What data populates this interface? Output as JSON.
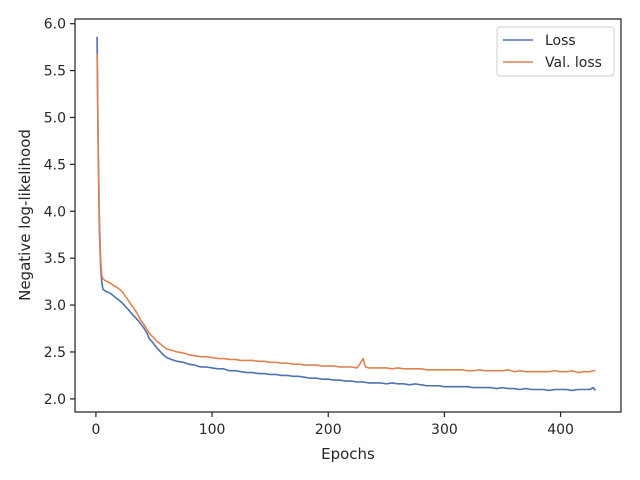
{
  "chart_data": {
    "type": "line",
    "title": "",
    "xlabel": "Epochs",
    "ylabel": "Negative log-likelihood",
    "xlim": [
      -18,
      452
    ],
    "ylim": [
      1.86,
      6.05
    ],
    "x_ticks": [
      0,
      100,
      200,
      300,
      400
    ],
    "x_tick_labels": [
      "0",
      "100",
      "200",
      "300",
      "400"
    ],
    "y_ticks": [
      2.0,
      2.5,
      3.0,
      3.5,
      4.0,
      4.5,
      5.0,
      5.5,
      6.0
    ],
    "y_tick_labels": [
      "2.0",
      "2.5",
      "3.0",
      "3.5",
      "4.0",
      "4.5",
      "5.0",
      "5.5",
      "6.0"
    ],
    "grid": false,
    "legend": "top-right",
    "series": [
      {
        "name": "Loss",
        "color": "#4c72b0",
        "points": [
          [
            1,
            5.86
          ],
          [
            2,
            4.6
          ],
          [
            3,
            3.8
          ],
          [
            4,
            3.42
          ],
          [
            5,
            3.25
          ],
          [
            6,
            3.17
          ],
          [
            8,
            3.15
          ],
          [
            10,
            3.14
          ],
          [
            13,
            3.12
          ],
          [
            15,
            3.1
          ],
          [
            18,
            3.07
          ],
          [
            20,
            3.05
          ],
          [
            23,
            3.02
          ],
          [
            25,
            2.99
          ],
          [
            28,
            2.95
          ],
          [
            30,
            2.92
          ],
          [
            33,
            2.88
          ],
          [
            36,
            2.84
          ],
          [
            38,
            2.81
          ],
          [
            41,
            2.76
          ],
          [
            44,
            2.7
          ],
          [
            46,
            2.64
          ],
          [
            49,
            2.6
          ],
          [
            52,
            2.55
          ],
          [
            55,
            2.51
          ],
          [
            58,
            2.47
          ],
          [
            61,
            2.44
          ],
          [
            65,
            2.42
          ],
          [
            70,
            2.4
          ],
          [
            75,
            2.39
          ],
          [
            80,
            2.37
          ],
          [
            85,
            2.36
          ],
          [
            90,
            2.34
          ],
          [
            95,
            2.34
          ],
          [
            100,
            2.33
          ],
          [
            105,
            2.32
          ],
          [
            110,
            2.32
          ],
          [
            115,
            2.3
          ],
          [
            120,
            2.3
          ],
          [
            125,
            2.29
          ],
          [
            130,
            2.28
          ],
          [
            135,
            2.28
          ],
          [
            140,
            2.27
          ],
          [
            145,
            2.27
          ],
          [
            150,
            2.26
          ],
          [
            155,
            2.26
          ],
          [
            160,
            2.25
          ],
          [
            165,
            2.25
          ],
          [
            170,
            2.24
          ],
          [
            175,
            2.24
          ],
          [
            180,
            2.23
          ],
          [
            185,
            2.22
          ],
          [
            190,
            2.22
          ],
          [
            195,
            2.21
          ],
          [
            200,
            2.21
          ],
          [
            205,
            2.2
          ],
          [
            210,
            2.2
          ],
          [
            215,
            2.19
          ],
          [
            220,
            2.19
          ],
          [
            225,
            2.18
          ],
          [
            230,
            2.18
          ],
          [
            235,
            2.17
          ],
          [
            240,
            2.17
          ],
          [
            245,
            2.17
          ],
          [
            250,
            2.16
          ],
          [
            255,
            2.17
          ],
          [
            260,
            2.16
          ],
          [
            265,
            2.16
          ],
          [
            270,
            2.15
          ],
          [
            275,
            2.16
          ],
          [
            280,
            2.15
          ],
          [
            285,
            2.14
          ],
          [
            290,
            2.14
          ],
          [
            295,
            2.14
          ],
          [
            300,
            2.13
          ],
          [
            305,
            2.13
          ],
          [
            310,
            2.13
          ],
          [
            315,
            2.13
          ],
          [
            320,
            2.13
          ],
          [
            325,
            2.12
          ],
          [
            330,
            2.12
          ],
          [
            335,
            2.12
          ],
          [
            340,
            2.12
          ],
          [
            345,
            2.11
          ],
          [
            350,
            2.12
          ],
          [
            355,
            2.11
          ],
          [
            360,
            2.11
          ],
          [
            365,
            2.1
          ],
          [
            370,
            2.11
          ],
          [
            375,
            2.1
          ],
          [
            380,
            2.1
          ],
          [
            385,
            2.1
          ],
          [
            390,
            2.09
          ],
          [
            395,
            2.1
          ],
          [
            400,
            2.1
          ],
          [
            405,
            2.1
          ],
          [
            410,
            2.09
          ],
          [
            415,
            2.1
          ],
          [
            420,
            2.1
          ],
          [
            425,
            2.1
          ],
          [
            428,
            2.12
          ],
          [
            430,
            2.09
          ]
        ]
      },
      {
        "name": "Val. loss",
        "color": "#dd8452",
        "points": [
          [
            1,
            5.68
          ],
          [
            2,
            4.7
          ],
          [
            3,
            3.95
          ],
          [
            4,
            3.5
          ],
          [
            5,
            3.32
          ],
          [
            6,
            3.28
          ],
          [
            8,
            3.26
          ],
          [
            10,
            3.25
          ],
          [
            13,
            3.23
          ],
          [
            15,
            3.21
          ],
          [
            18,
            3.19
          ],
          [
            20,
            3.17
          ],
          [
            23,
            3.14
          ],
          [
            25,
            3.1
          ],
          [
            28,
            3.05
          ],
          [
            30,
            3.01
          ],
          [
            33,
            2.96
          ],
          [
            36,
            2.9
          ],
          [
            38,
            2.85
          ],
          [
            41,
            2.8
          ],
          [
            44,
            2.74
          ],
          [
            46,
            2.7
          ],
          [
            49,
            2.66
          ],
          [
            52,
            2.62
          ],
          [
            55,
            2.59
          ],
          [
            58,
            2.56
          ],
          [
            61,
            2.53
          ],
          [
            65,
            2.52
          ],
          [
            70,
            2.5
          ],
          [
            75,
            2.49
          ],
          [
            80,
            2.47
          ],
          [
            85,
            2.46
          ],
          [
            90,
            2.45
          ],
          [
            95,
            2.45
          ],
          [
            100,
            2.44
          ],
          [
            105,
            2.43
          ],
          [
            110,
            2.43
          ],
          [
            115,
            2.42
          ],
          [
            120,
            2.42
          ],
          [
            125,
            2.41
          ],
          [
            130,
            2.41
          ],
          [
            135,
            2.41
          ],
          [
            140,
            2.4
          ],
          [
            145,
            2.4
          ],
          [
            150,
            2.39
          ],
          [
            155,
            2.39
          ],
          [
            160,
            2.38
          ],
          [
            165,
            2.38
          ],
          [
            170,
            2.37
          ],
          [
            175,
            2.37
          ],
          [
            180,
            2.36
          ],
          [
            185,
            2.36
          ],
          [
            190,
            2.36
          ],
          [
            195,
            2.35
          ],
          [
            200,
            2.35
          ],
          [
            205,
            2.35
          ],
          [
            210,
            2.34
          ],
          [
            215,
            2.34
          ],
          [
            220,
            2.34
          ],
          [
            225,
            2.33
          ],
          [
            230,
            2.43
          ],
          [
            232,
            2.34
          ],
          [
            235,
            2.33
          ],
          [
            240,
            2.33
          ],
          [
            245,
            2.33
          ],
          [
            250,
            2.33
          ],
          [
            255,
            2.32
          ],
          [
            260,
            2.33
          ],
          [
            265,
            2.32
          ],
          [
            270,
            2.32
          ],
          [
            275,
            2.32
          ],
          [
            280,
            2.32
          ],
          [
            285,
            2.31
          ],
          [
            290,
            2.31
          ],
          [
            295,
            2.31
          ],
          [
            300,
            2.31
          ],
          [
            305,
            2.31
          ],
          [
            310,
            2.31
          ],
          [
            315,
            2.31
          ],
          [
            320,
            2.3
          ],
          [
            325,
            2.3
          ],
          [
            330,
            2.31
          ],
          [
            335,
            2.3
          ],
          [
            340,
            2.3
          ],
          [
            345,
            2.3
          ],
          [
            350,
            2.3
          ],
          [
            355,
            2.31
          ],
          [
            360,
            2.29
          ],
          [
            365,
            2.3
          ],
          [
            370,
            2.29
          ],
          [
            375,
            2.29
          ],
          [
            380,
            2.29
          ],
          [
            385,
            2.29
          ],
          [
            390,
            2.29
          ],
          [
            395,
            2.3
          ],
          [
            400,
            2.29
          ],
          [
            405,
            2.29
          ],
          [
            410,
            2.3
          ],
          [
            415,
            2.28
          ],
          [
            420,
            2.29
          ],
          [
            425,
            2.29
          ],
          [
            428,
            2.3
          ],
          [
            430,
            2.3
          ]
        ]
      }
    ]
  }
}
